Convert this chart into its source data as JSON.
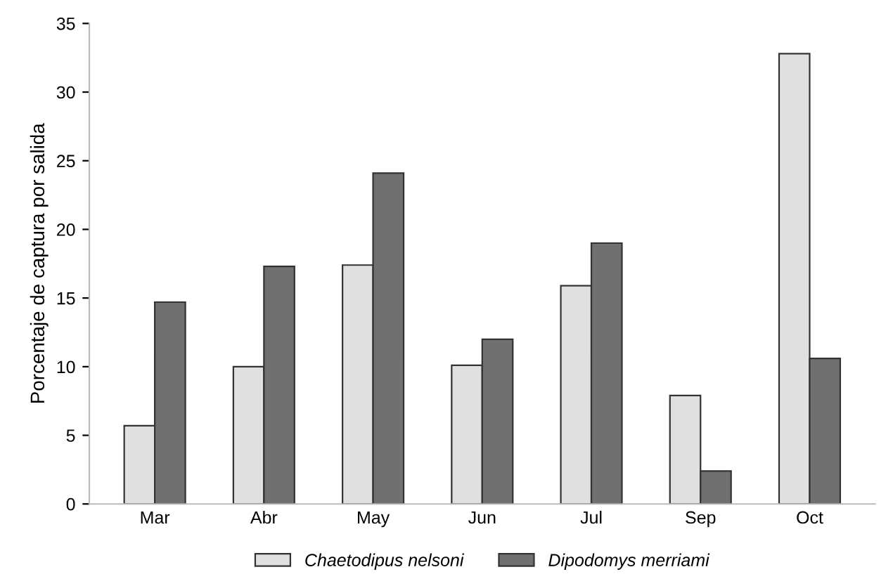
{
  "chart_data": {
    "type": "bar",
    "ylabel": "Porcentaje de captura por salida",
    "categories": [
      "Mar",
      "Abr",
      "May",
      "Jun",
      "Jul",
      "Sep",
      "Oct"
    ],
    "series": [
      {
        "name": "Chaetodipus nelsoni",
        "color": "#e0e0e0",
        "values": [
          5.7,
          10.0,
          17.4,
          10.1,
          15.9,
          7.9,
          32.8
        ]
      },
      {
        "name": "Dipodomys merriami",
        "color": "#707070",
        "values": [
          14.7,
          17.3,
          24.1,
          12.0,
          19.0,
          2.4,
          10.6
        ]
      }
    ],
    "ylim": [
      0,
      35
    ],
    "yticks": [
      0,
      5,
      10,
      15,
      20,
      25,
      30,
      35
    ],
    "grid": false,
    "legend": "bottom"
  }
}
